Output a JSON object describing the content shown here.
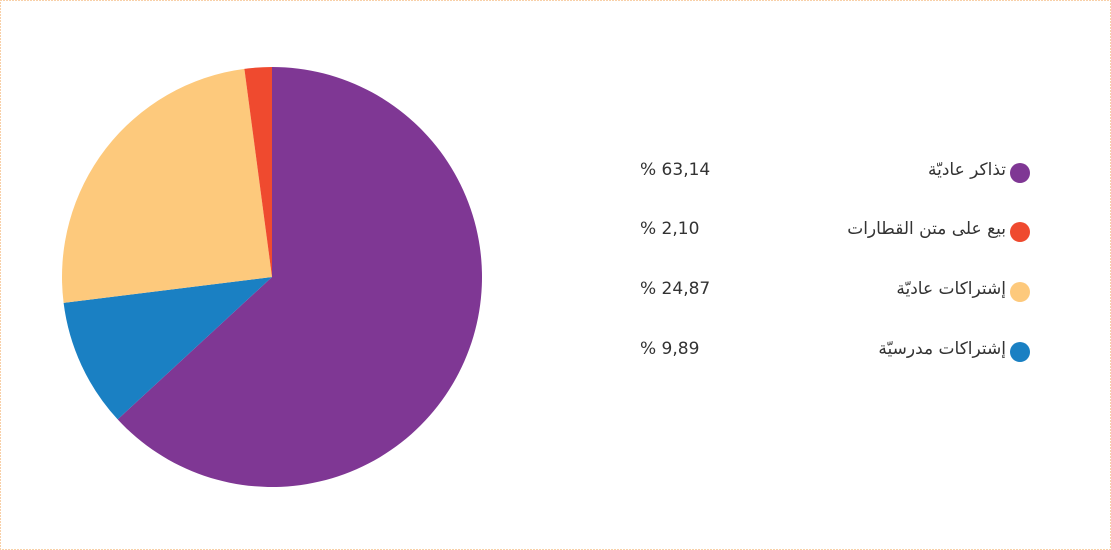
{
  "chart_data": {
    "type": "pie",
    "categories": [
      "تذاكر عاديّة",
      "بيع على متن القطارات",
      "إشتراكات عاديّة",
      "إشتراكات مدرسيّة"
    ],
    "values": [
      63.14,
      2.1,
      24.87,
      9.89
    ],
    "value_labels": [
      "% 63,14",
      "% 2,10",
      "% 24,87",
      "% 9,89"
    ],
    "colors": [
      "#7f3794",
      "#ef4a2f",
      "#fdc97c",
      "#1a80c3"
    ],
    "legend": "right"
  }
}
